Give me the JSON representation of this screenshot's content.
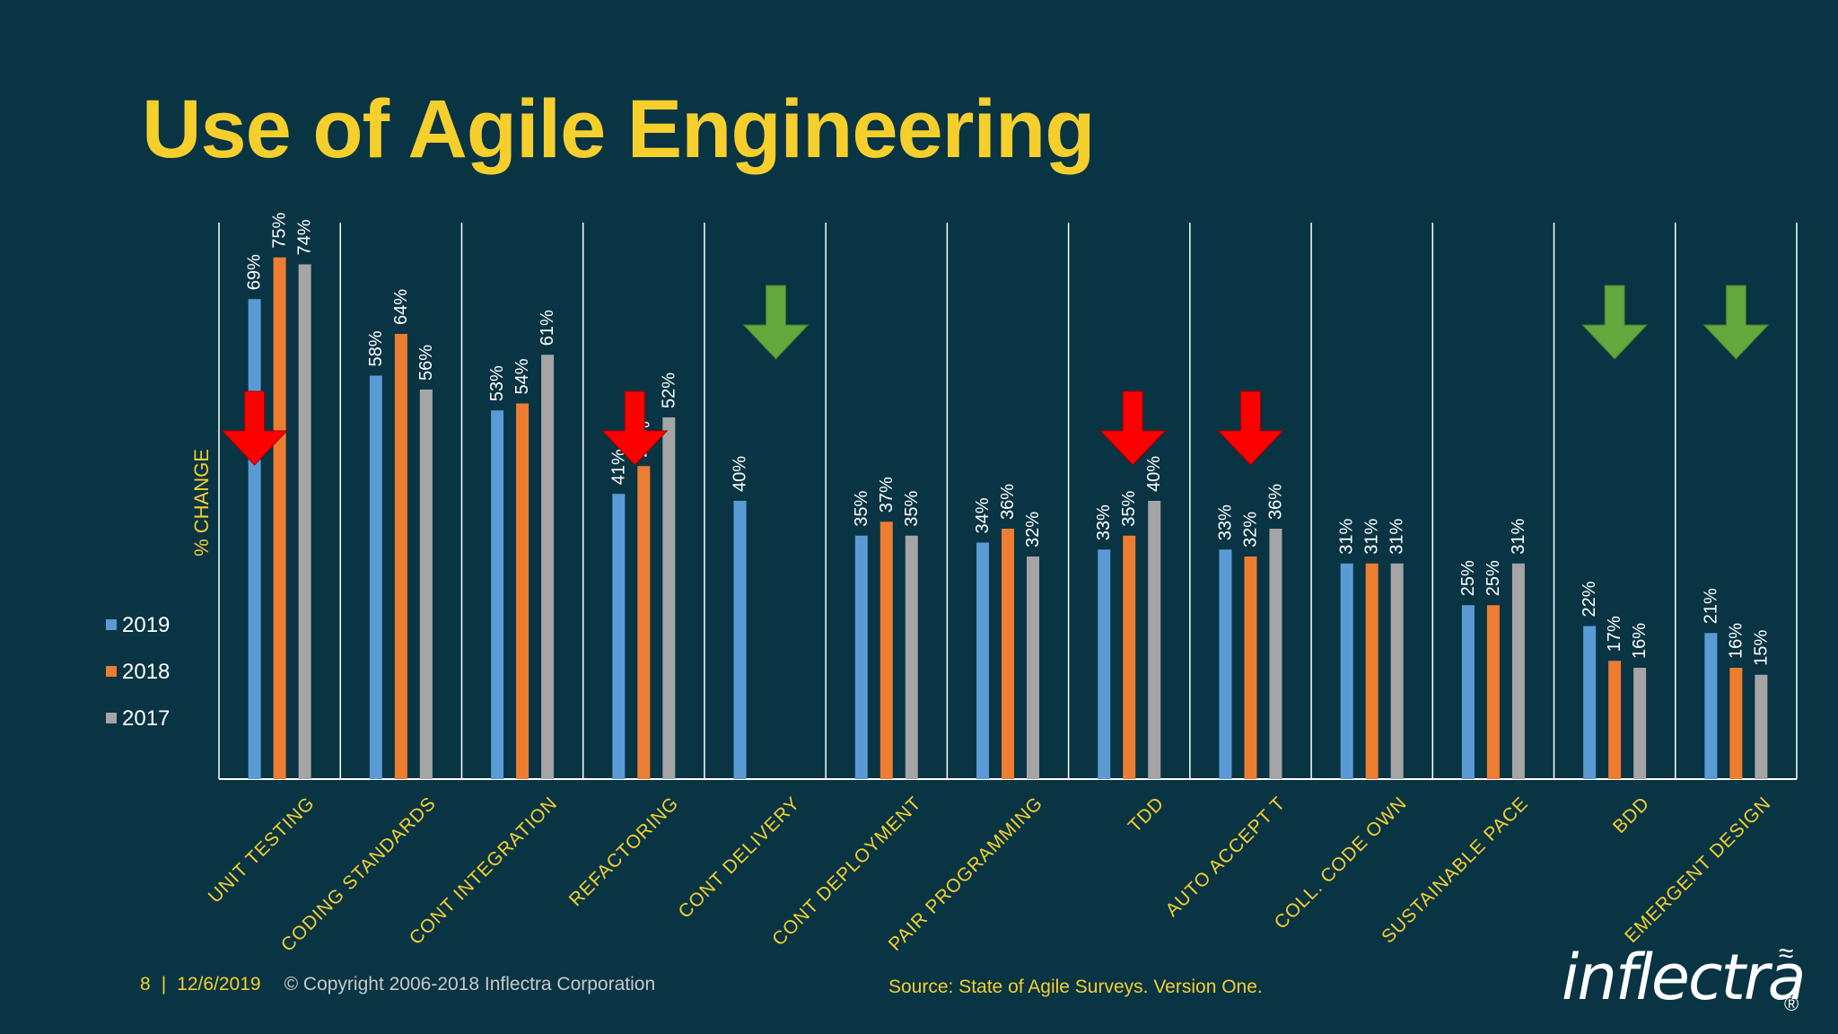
{
  "slide": {
    "title": "Use of Agile Engineering",
    "page_number": "8",
    "divider": "|",
    "date": "12/6/2019",
    "copyright": "© Copyright 2006-2018 Inflectra Corporation",
    "source": "Source: State of Agile Surveys. Version One.",
    "logo_text": "inflectra",
    "logo_registered": "®"
  },
  "chart_data": {
    "type": "bar",
    "ylabel": "% CHANGE",
    "ylim": [
      0,
      80
    ],
    "categories": [
      "UNIT TESTING",
      "CODING STANDARDS",
      "CONT INTEGRATION",
      "REFACTORING",
      "CONT DELIVERY",
      "CONT DEPLOYMENT",
      "PAIR PROGRAMMING",
      "TDD",
      "AUTO ACCEPT T",
      "COLL. CODE OWN",
      "SUSTAINABLE PACE",
      "BDD",
      "EMERGENT DESIGN"
    ],
    "series": [
      {
        "name": "2019",
        "color": "#5b9bd5",
        "values": [
          69,
          58,
          53,
          41,
          40,
          35,
          34,
          33,
          33,
          31,
          25,
          22,
          21
        ]
      },
      {
        "name": "2018",
        "color": "#ed7d31",
        "values": [
          75,
          64,
          54,
          45,
          null,
          37,
          36,
          35,
          32,
          31,
          25,
          17,
          16
        ]
      },
      {
        "name": "2017",
        "color": "#a5a5a5",
        "values": [
          74,
          56,
          61,
          52,
          null,
          35,
          32,
          40,
          36,
          31,
          31,
          16,
          15
        ]
      }
    ],
    "legend_position": "left",
    "annotations": [
      {
        "category": "UNIT TESTING",
        "arrow": "down",
        "color": "#ff0000"
      },
      {
        "category": "REFACTORING",
        "arrow": "down",
        "color": "#ff0000"
      },
      {
        "category": "CONT DELIVERY",
        "arrow": "down",
        "color": "#62a83d"
      },
      {
        "category": "TDD",
        "arrow": "down",
        "color": "#ff0000"
      },
      {
        "category": "AUTO ACCEPT T",
        "arrow": "down",
        "color": "#ff0000"
      },
      {
        "category": "BDD",
        "arrow": "down",
        "color": "#62a83d"
      },
      {
        "category": "EMERGENT DESIGN",
        "arrow": "down",
        "color": "#62a83d"
      }
    ]
  }
}
